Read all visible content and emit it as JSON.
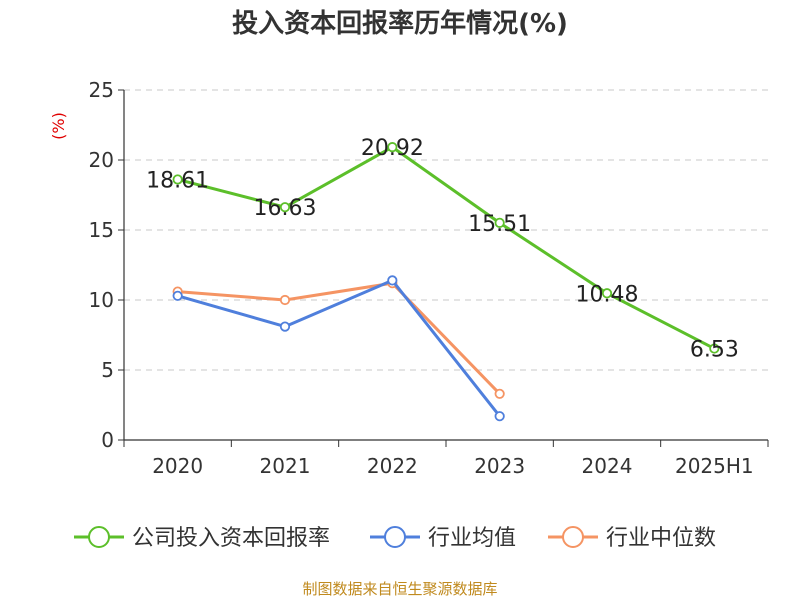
{
  "chart_data": {
    "type": "line",
    "title": "投入资本回报率历年情况(%)",
    "ylabel": "(%)",
    "categories": [
      "2020",
      "2021",
      "2022",
      "2023",
      "2024",
      "2025H1"
    ],
    "ylim": [
      0,
      25
    ],
    "yticks": [
      0,
      5,
      10,
      15,
      20,
      25
    ],
    "grid": true,
    "legend_position": "bottom",
    "series": [
      {
        "name": "公司投入资本回报率",
        "color": "#5cbf2a",
        "values": [
          18.61,
          16.63,
          20.92,
          15.51,
          10.48,
          6.53
        ],
        "labels": [
          "18.61",
          "16.63",
          "20.92",
          "15.51",
          "10.48",
          "6.53"
        ]
      },
      {
        "name": "行业均值",
        "color": "#4f7fdc",
        "values": [
          10.3,
          8.1,
          11.4,
          1.7,
          null,
          null
        ]
      },
      {
        "name": "行业中位数",
        "color": "#f59463",
        "values": [
          10.6,
          10.0,
          11.2,
          3.3,
          null,
          null
        ]
      }
    ]
  },
  "source": "制图数据来自恒生聚源数据库"
}
